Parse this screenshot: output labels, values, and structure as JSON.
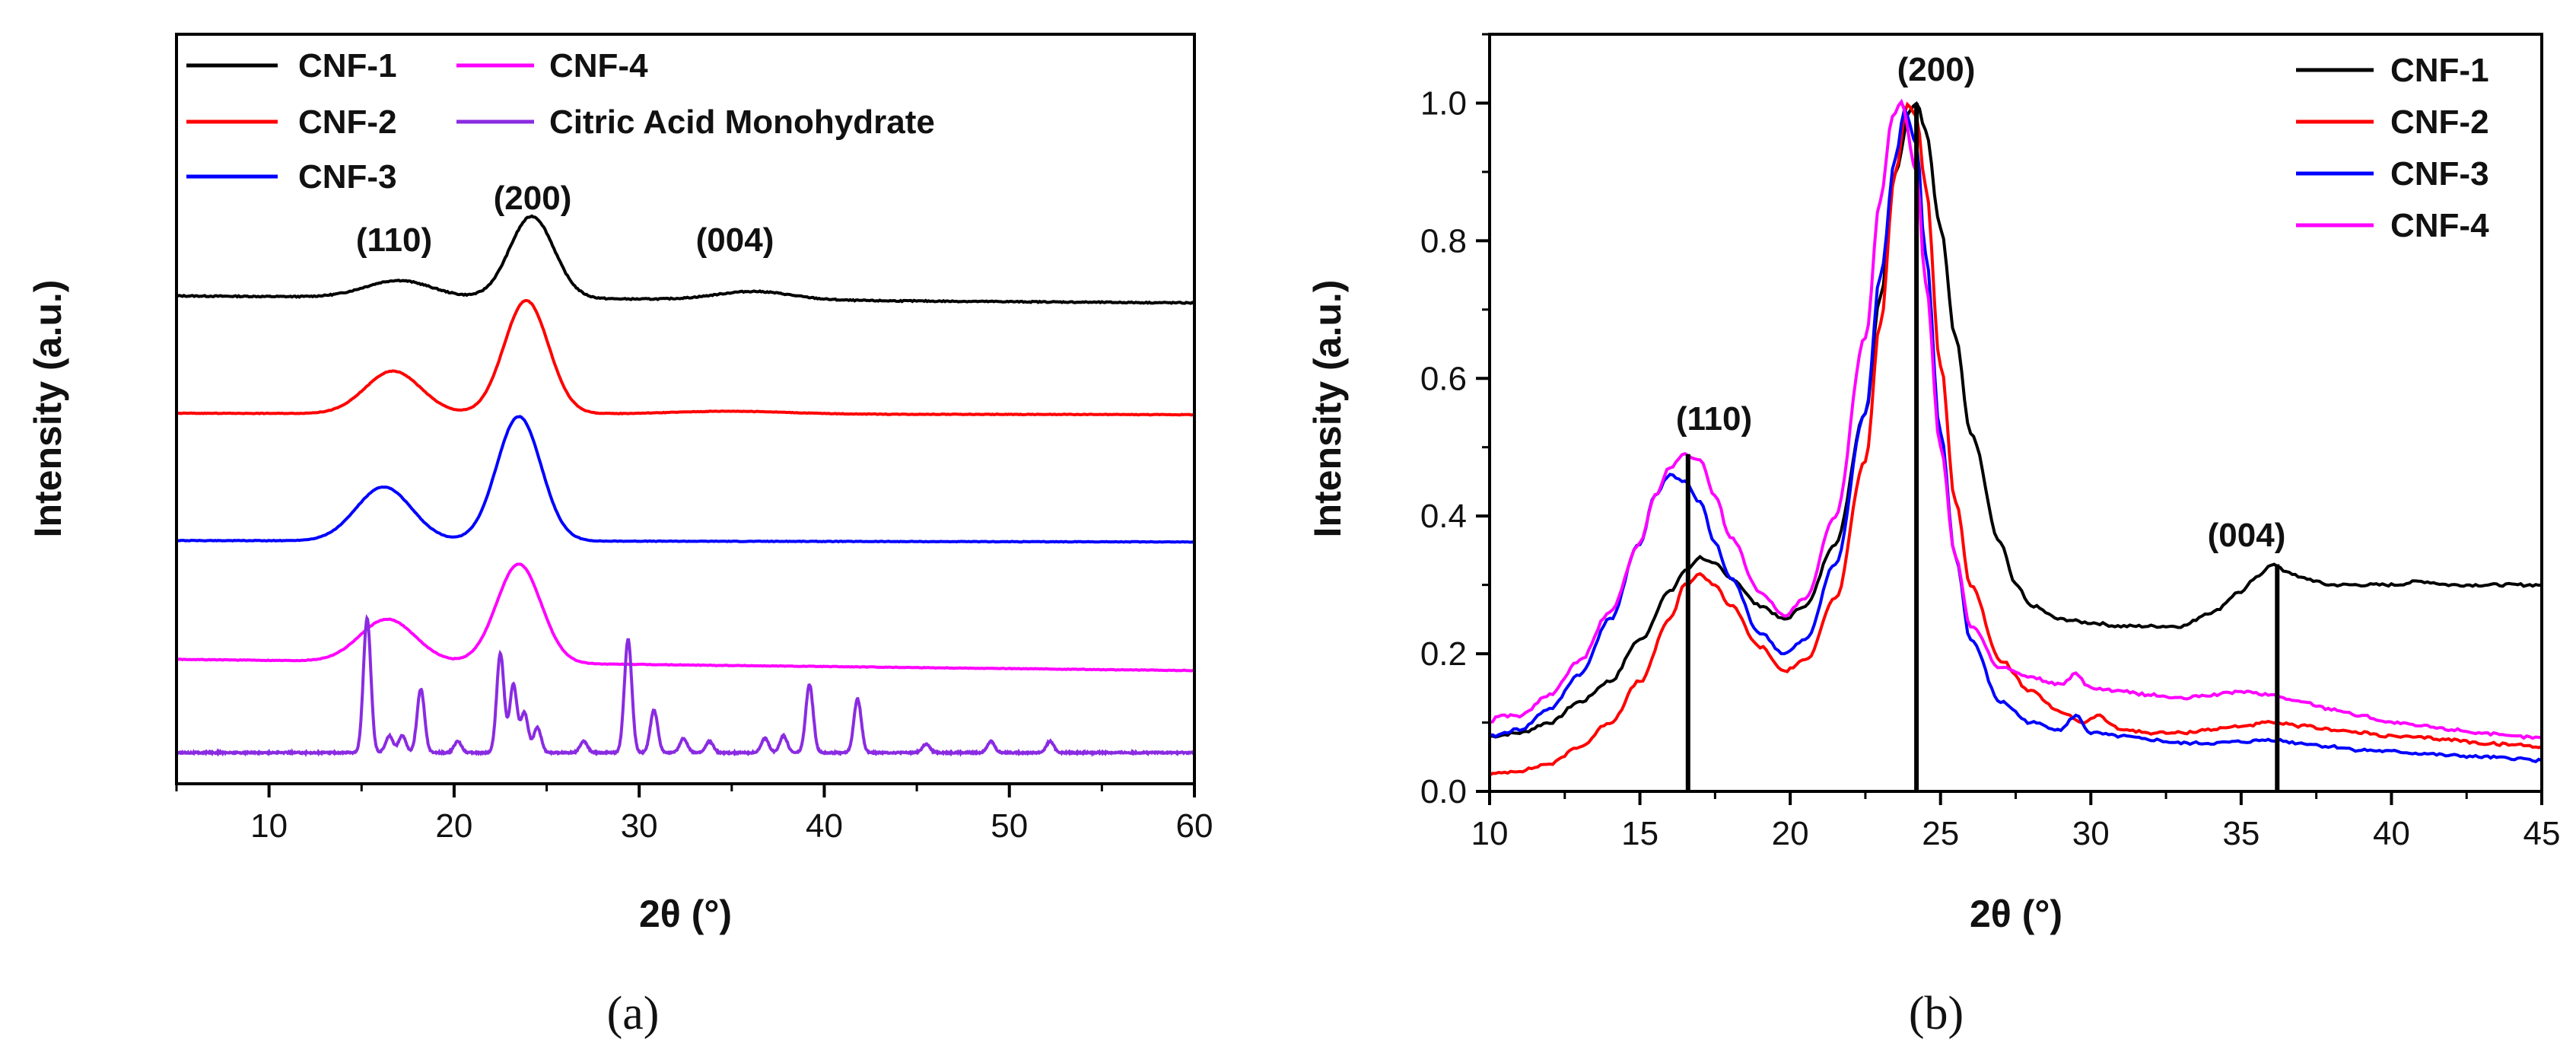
{
  "chart_data": [
    {
      "type": "line",
      "panel": "a",
      "panel_label": "(a)",
      "xlabel": "2θ (°)",
      "ylabel": "Intensity (a.u.)",
      "xlim": [
        5,
        60
      ],
      "ylim": [
        0,
        5.3
      ],
      "xticks": [
        10,
        20,
        30,
        40,
        50,
        60
      ],
      "stacked_offsets": true,
      "legend": [
        "CNF-1",
        "CNF-4",
        "CNF-2",
        "Citric Acid Monohydrate",
        "CNF-3"
      ],
      "annotations": [
        {
          "text": "(110)",
          "x": 16.5,
          "y": 3.2
        },
        {
          "text": "(200)",
          "x": 24,
          "y": 3.8
        },
        {
          "text": "(004)",
          "x": 36.5,
          "y": 3.2
        }
      ],
      "series": [
        {
          "name": "CNF-1",
          "color": "#000000",
          "offset": 3.4,
          "baseline": 0.05,
          "drift": -0.05,
          "peaks": [
            [
              17,
              0.12,
              1.8
            ],
            [
              24.2,
              0.58,
              1.2
            ],
            [
              36.2,
              0.06,
              2.0
            ]
          ],
          "noise": 0.008
        },
        {
          "name": "CNF-2",
          "color": "#ff0000",
          "offset": 2.6,
          "baseline": 0.02,
          "drift": -0.01,
          "peaks": [
            [
              16.7,
              0.3,
              1.5
            ],
            [
              23.9,
              0.8,
              1.2
            ],
            [
              35,
              0.02,
              3.0
            ]
          ],
          "noise": 0.004
        },
        {
          "name": "CNF-3",
          "color": "#0000ff",
          "offset": 1.7,
          "baseline": 0.02,
          "drift": -0.01,
          "peaks": [
            [
              16.2,
              0.38,
              1.5
            ],
            [
              23.5,
              0.88,
              1.2
            ]
          ],
          "noise": 0.004
        },
        {
          "name": "CNF-4",
          "color": "#ff00ff",
          "offset": 0.8,
          "baseline": 0.08,
          "drift": -0.08,
          "peaks": [
            [
              16.4,
              0.3,
              1.5
            ],
            [
              23.5,
              0.7,
              1.2
            ]
          ],
          "noise": 0.004
        },
        {
          "name": "Citric Acid Monohydrate",
          "color": "#8a2be2",
          "offset": 0.22,
          "baseline": 0.0,
          "drift": 0.0,
          "peaks": [
            [
              15.3,
              0.95,
              0.2
            ],
            [
              16.5,
              0.12,
              0.2
            ],
            [
              17.2,
              0.12,
              0.2
            ],
            [
              18.2,
              0.45,
              0.2
            ],
            [
              20.2,
              0.08,
              0.2
            ],
            [
              22.5,
              0.7,
              0.2
            ],
            [
              23.2,
              0.48,
              0.2
            ],
            [
              23.8,
              0.28,
              0.2
            ],
            [
              24.5,
              0.18,
              0.2
            ],
            [
              27,
              0.08,
              0.2
            ],
            [
              29.4,
              0.8,
              0.2
            ],
            [
              30.8,
              0.3,
              0.2
            ],
            [
              32.4,
              0.1,
              0.2
            ],
            [
              33.8,
              0.08,
              0.2
            ],
            [
              36.8,
              0.1,
              0.2
            ],
            [
              37.8,
              0.12,
              0.2
            ],
            [
              39.2,
              0.48,
              0.2
            ],
            [
              41.8,
              0.38,
              0.2
            ],
            [
              45.5,
              0.06,
              0.2
            ],
            [
              49,
              0.08,
              0.2
            ],
            [
              52.2,
              0.08,
              0.2
            ]
          ],
          "noise": 0.01
        }
      ]
    },
    {
      "type": "line",
      "panel": "b",
      "panel_label": "(b)",
      "xlabel": "2θ (°)",
      "ylabel": "Intensity (a.u.)",
      "xlim": [
        10,
        45
      ],
      "ylim": [
        0,
        1.1
      ],
      "xticks": [
        10,
        15,
        20,
        25,
        30,
        35,
        40,
        45
      ],
      "yticks": [
        0.0,
        0.2,
        0.4,
        0.6,
        0.8,
        1.0
      ],
      "ytick_labels": [
        "0.0",
        "0.2",
        "0.4",
        "0.6",
        "0.8",
        "1.0"
      ],
      "legend": [
        "CNF-1",
        "CNF-2",
        "CNF-3",
        "CNF-4"
      ],
      "vertical_markers": [
        {
          "x": 16.6,
          "y_top": 0.49
        },
        {
          "x": 24.2,
          "y_top": 1.0
        },
        {
          "x": 36.2,
          "y_top": 0.33
        }
      ],
      "annotations": [
        {
          "text": "(110)",
          "x": 16.6,
          "y": 0.53
        },
        {
          "text": "(200)",
          "x": 24.2,
          "y": 1.04
        },
        {
          "text": "(004)",
          "x": 36.2,
          "y": 0.37
        }
      ],
      "series": [
        {
          "name": "CNF-1",
          "color": "#000000",
          "x": [
            10,
            11,
            12,
            13,
            14,
            15,
            16,
            16.5,
            17,
            17.5,
            18,
            19,
            19.8,
            20.5,
            21.5,
            22.5,
            23,
            23.5,
            24,
            24.2,
            24.5,
            25,
            25.5,
            26,
            27,
            27.5,
            28,
            29,
            30,
            31,
            32,
            33,
            34,
            35,
            35.5,
            36,
            36.5,
            37,
            38,
            39,
            40,
            41,
            42,
            43,
            44,
            45
          ],
          "y": [
            0.08,
            0.085,
            0.1,
            0.13,
            0.16,
            0.22,
            0.29,
            0.32,
            0.34,
            0.33,
            0.31,
            0.27,
            0.25,
            0.27,
            0.36,
            0.55,
            0.72,
            0.9,
            0.99,
            1.0,
            0.96,
            0.82,
            0.66,
            0.52,
            0.36,
            0.3,
            0.27,
            0.25,
            0.245,
            0.24,
            0.24,
            0.24,
            0.26,
            0.29,
            0.31,
            0.33,
            0.32,
            0.31,
            0.3,
            0.3,
            0.3,
            0.305,
            0.3,
            0.3,
            0.3,
            0.3
          ]
        },
        {
          "name": "CNF-2",
          "color": "#ff0000",
          "x": [
            10,
            11,
            12,
            13,
            14,
            15,
            16,
            16.5,
            17,
            17.5,
            18,
            19,
            19.8,
            20.5,
            21.5,
            22.5,
            23,
            23.5,
            23.9,
            24.2,
            24.5,
            25,
            25.5,
            26,
            27,
            28,
            29,
            29.8,
            30.2,
            31,
            32,
            33,
            34,
            35,
            36,
            37,
            38,
            39,
            40,
            41,
            42,
            43,
            44,
            45
          ],
          "y": [
            0.025,
            0.03,
            0.04,
            0.065,
            0.1,
            0.16,
            0.25,
            0.3,
            0.315,
            0.3,
            0.27,
            0.21,
            0.175,
            0.19,
            0.28,
            0.48,
            0.68,
            0.9,
            1.0,
            0.98,
            0.88,
            0.62,
            0.42,
            0.3,
            0.19,
            0.145,
            0.115,
            0.1,
            0.11,
            0.09,
            0.085,
            0.085,
            0.09,
            0.095,
            0.1,
            0.095,
            0.09,
            0.085,
            0.08,
            0.078,
            0.075,
            0.07,
            0.068,
            0.065
          ]
        },
        {
          "name": "CNF-3",
          "color": "#0000ff",
          "x": [
            10,
            11,
            12,
            13,
            14,
            15,
            15.5,
            16,
            16.5,
            17,
            17.5,
            18,
            19,
            19.8,
            20.5,
            21.5,
            22.5,
            23,
            23.5,
            23.8,
            24.2,
            24.5,
            25,
            25.5,
            26,
            27,
            28,
            29,
            29.5,
            30,
            31,
            32,
            33,
            34,
            35,
            36,
            37,
            38,
            39,
            40,
            41,
            42,
            43,
            44,
            45
          ],
          "y": [
            0.08,
            0.09,
            0.12,
            0.17,
            0.25,
            0.36,
            0.43,
            0.46,
            0.45,
            0.42,
            0.36,
            0.31,
            0.23,
            0.2,
            0.22,
            0.33,
            0.55,
            0.75,
            0.92,
            0.99,
            0.94,
            0.78,
            0.52,
            0.34,
            0.22,
            0.13,
            0.1,
            0.09,
            0.11,
            0.085,
            0.08,
            0.075,
            0.07,
            0.07,
            0.072,
            0.075,
            0.07,
            0.065,
            0.06,
            0.058,
            0.055,
            0.052,
            0.05,
            0.048,
            0.045
          ]
        },
        {
          "name": "CNF-4",
          "color": "#ff00ff",
          "x": [
            10,
            10.3,
            11,
            12,
            13,
            14,
            15,
            15.5,
            16,
            16.5,
            17,
            17.5,
            18,
            19,
            19.8,
            20.5,
            21.5,
            22.5,
            23,
            23.4,
            23.7,
            24.2,
            24.5,
            25,
            25.5,
            26,
            27,
            28,
            29,
            29.5,
            30,
            31,
            32,
            33,
            34,
            35,
            36,
            37,
            38,
            39,
            40,
            41,
            42,
            43,
            44,
            45
          ],
          "y": [
            0.1,
            0.11,
            0.11,
            0.14,
            0.19,
            0.26,
            0.36,
            0.43,
            0.47,
            0.49,
            0.48,
            0.43,
            0.37,
            0.29,
            0.255,
            0.28,
            0.4,
            0.66,
            0.86,
            0.98,
            1.0,
            0.9,
            0.74,
            0.5,
            0.34,
            0.24,
            0.18,
            0.165,
            0.155,
            0.17,
            0.15,
            0.145,
            0.14,
            0.135,
            0.14,
            0.145,
            0.14,
            0.13,
            0.12,
            0.11,
            0.1,
            0.095,
            0.09,
            0.085,
            0.08,
            0.078
          ]
        }
      ]
    }
  ]
}
